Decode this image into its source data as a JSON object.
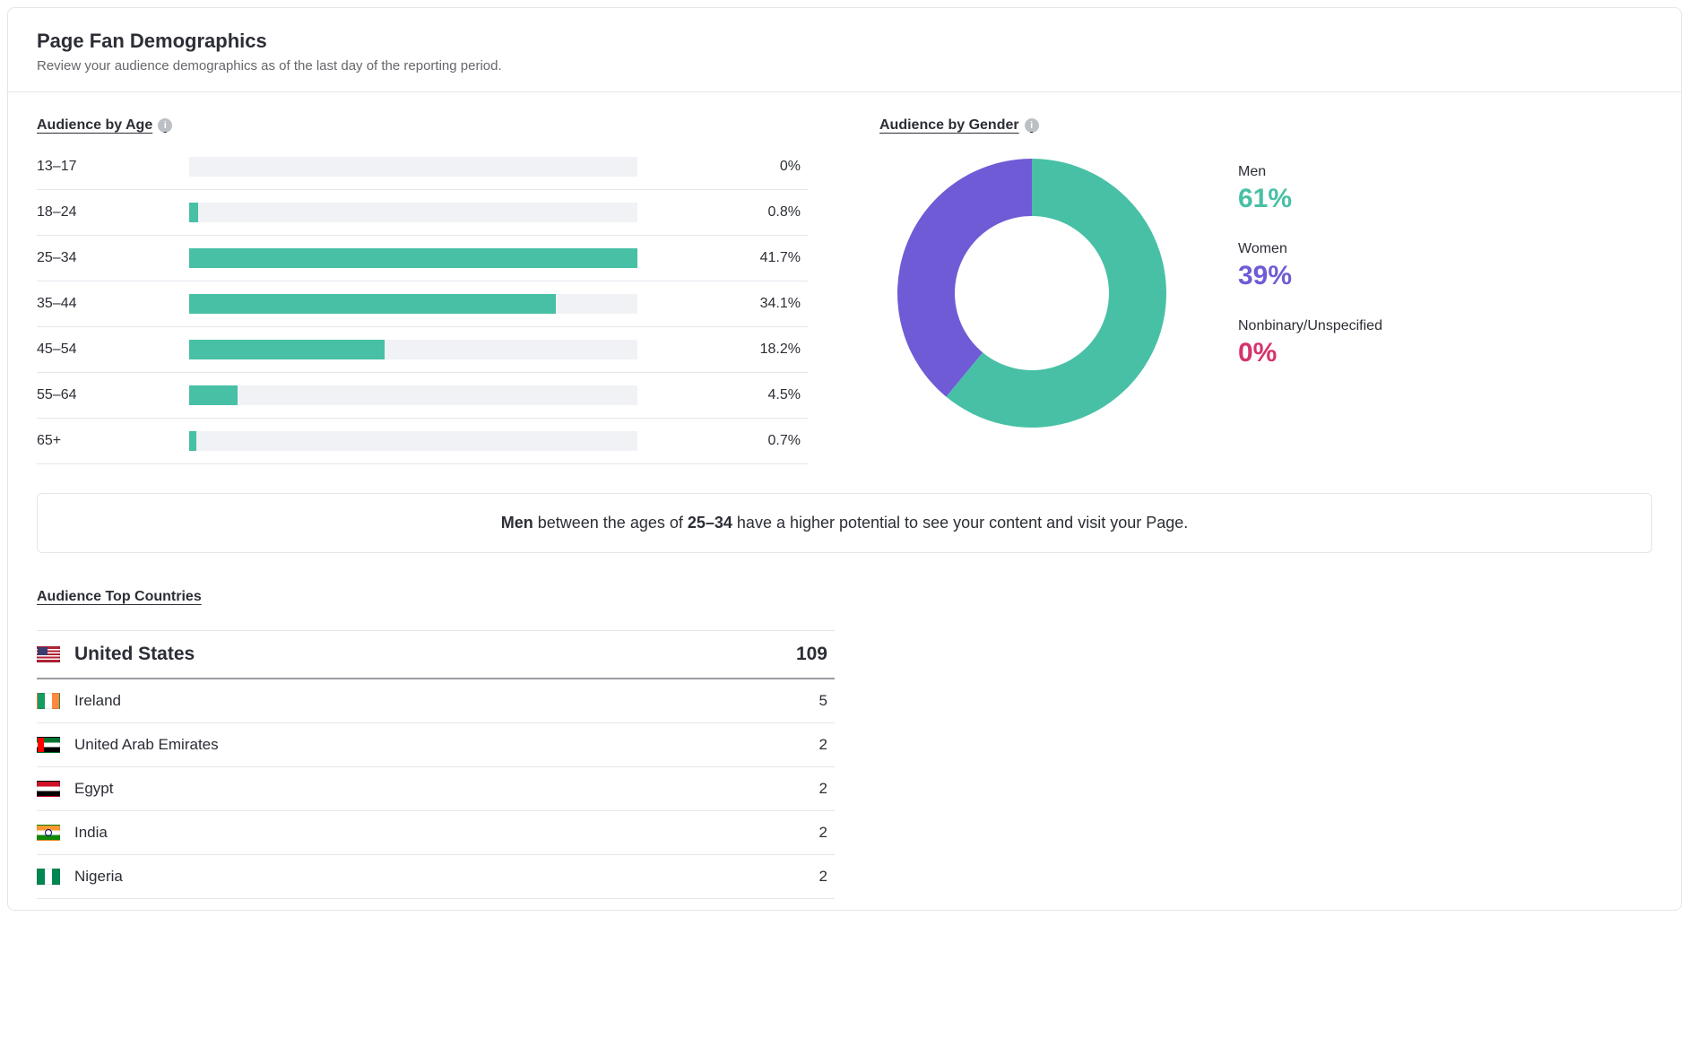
{
  "header": {
    "title": "Page Fan Demographics",
    "subtitle": "Review your audience demographics as of the last day of the reporting period."
  },
  "age_section": {
    "title": "Audience by Age",
    "bar_color": "#48c0a5",
    "track_color": "#f0f2f5",
    "max_value_percent": 41.7,
    "rows": [
      {
        "label": "13–17",
        "value_label": "0%",
        "percent": 0
      },
      {
        "label": "18–24",
        "value_label": "0.8%",
        "percent": 0.8
      },
      {
        "label": "25–34",
        "value_label": "41.7%",
        "percent": 41.7
      },
      {
        "label": "35–44",
        "value_label": "34.1%",
        "percent": 34.1
      },
      {
        "label": "45–54",
        "value_label": "18.2%",
        "percent": 18.2
      },
      {
        "label": "55–64",
        "value_label": "4.5%",
        "percent": 4.5
      },
      {
        "label": "65+",
        "value_label": "0.7%",
        "percent": 0.7
      }
    ]
  },
  "gender_section": {
    "title": "Audience by Gender",
    "donut": {
      "size": 300,
      "thickness": 64,
      "background": "#ffffff"
    },
    "items": [
      {
        "label": "Men",
        "value_label": "61%",
        "percent": 61,
        "color": "#48c0a5"
      },
      {
        "label": "Women",
        "value_label": "39%",
        "percent": 39,
        "color": "#6f5bd6"
      },
      {
        "label": "Nonbinary/Unspecified",
        "value_label": "0%",
        "percent": 0,
        "color": "#d6336c"
      }
    ]
  },
  "insight": {
    "prefix_bold": "Men",
    "mid_text": " between the ages of ",
    "age_bold": "25–34",
    "suffix_text": " have a higher potential to see your content and visit your Page."
  },
  "countries_section": {
    "title": "Audience Top Countries",
    "rows": [
      {
        "flag_class": "flag-us",
        "name": "United States",
        "value": "109",
        "top": true
      },
      {
        "flag_class": "flag-ie",
        "name": "Ireland",
        "value": "5",
        "top": false
      },
      {
        "flag_class": "flag-ae",
        "name": "United Arab Emirates",
        "value": "2",
        "top": false
      },
      {
        "flag_class": "flag-eg",
        "name": "Egypt",
        "value": "2",
        "top": false
      },
      {
        "flag_class": "flag-in",
        "name": "India",
        "value": "2",
        "top": false
      },
      {
        "flag_class": "flag-ng",
        "name": "Nigeria",
        "value": "2",
        "top": false
      }
    ]
  }
}
